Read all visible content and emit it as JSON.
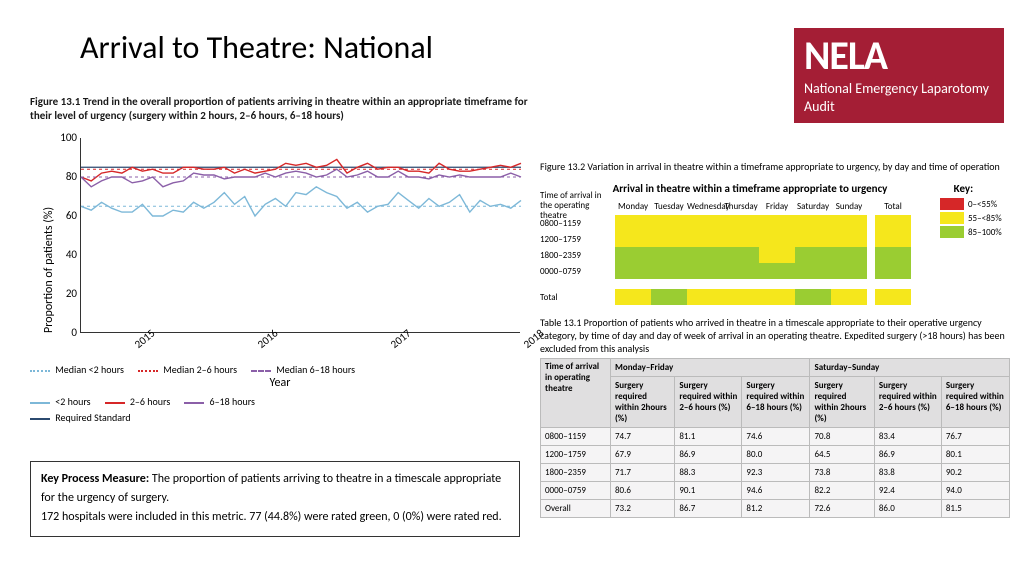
{
  "title": "Arrival to Theatre: National",
  "logo": {
    "abbr": "NELA",
    "full": "National Emergency Laparotomy Audit",
    "bg": "#a41e35",
    "fg": "#ffffff"
  },
  "fig131": {
    "caption": "Figure 13.1  Trend in the overall proportion of patients arriving in theatre within an appropriate timeframe for their level of urgency (surgery within 2 hours, 2–6 hours, 6–18 hours)",
    "type": "line",
    "y_label": "Proportion of patients (%)",
    "x_label": "Year",
    "ylim": [
      0,
      100
    ],
    "ytick_step": 20,
    "x_ticks": [
      "2015",
      "2016",
      "2017",
      "2018"
    ],
    "n_points": 44,
    "x_tick_positions": [
      5,
      17,
      30,
      43
    ],
    "background_color": "#ffffff",
    "required_standard": 85,
    "series": {
      "lt2": {
        "label": "<2 hours",
        "color": "#7db8d8",
        "median_color": "#7db8d8",
        "median": 65,
        "values": [
          65,
          63,
          67,
          64,
          62,
          62,
          66,
          60,
          60,
          63,
          62,
          67,
          64,
          67,
          72,
          66,
          70,
          60,
          66,
          69,
          65,
          72,
          71,
          75,
          72,
          70,
          64,
          67,
          62,
          65,
          66,
          72,
          68,
          64,
          69,
          65,
          67,
          71,
          62,
          68,
          65,
          66,
          64,
          68
        ]
      },
      "h2_6": {
        "label": "2–6 hours",
        "color": "#d62728",
        "median_color": "#d62728",
        "median": 84,
        "values": [
          80,
          78,
          82,
          83,
          82,
          85,
          83,
          84,
          82,
          82,
          85,
          85,
          84,
          84,
          85,
          82,
          84,
          82,
          83,
          84,
          87,
          86,
          87,
          85,
          86,
          89,
          82,
          85,
          87,
          84,
          85,
          85,
          83,
          83,
          82,
          87,
          84,
          83,
          83,
          84,
          85,
          86,
          85,
          87
        ]
      },
      "h6_18": {
        "label": "6–18 hours",
        "color": "#8b5fa8",
        "median_color": "#8b5fa8",
        "median": 80,
        "values": [
          80,
          75,
          78,
          80,
          80,
          77,
          78,
          80,
          75,
          77,
          78,
          82,
          81,
          81,
          79,
          80,
          80,
          80,
          82,
          80,
          82,
          83,
          82,
          80,
          81,
          84,
          80,
          81,
          83,
          80,
          80,
          83,
          80,
          80,
          79,
          81,
          80,
          81,
          80,
          80,
          80,
          80,
          82,
          80
        ]
      }
    },
    "legend": [
      {
        "label": "Median <2 hours",
        "style": "dotted",
        "color": "#7db8d8"
      },
      {
        "label": "Median 2–6 hours",
        "style": "dotted",
        "color": "#d62728"
      },
      {
        "label": "Median 6–18 hours",
        "style": "dashed",
        "color": "#8b5fa8"
      },
      {
        "label": "<2 hours",
        "style": "solid",
        "color": "#7db8d8"
      },
      {
        "label": "2–6 hours",
        "style": "solid",
        "color": "#d62728"
      },
      {
        "label": "6–18 hours",
        "style": "solid",
        "color": "#8b5fa8"
      },
      {
        "label": "Required Standard",
        "style": "solid",
        "color": "#2b4a6f"
      }
    ]
  },
  "kpm": {
    "label": "Key Process Measure:",
    "text1": "The proportion of patients arriving to theatre in a timescale appropriate for the urgency of surgery.",
    "text2": "172 hospitals were included in this metric. 77 (44.8%) were rated green, 0 (0%) were rated red."
  },
  "fig132": {
    "caption": "Figure 13.2  Variation in arrival in theatre within a timeframe appropriate to urgency, by day and time of operation",
    "title": "Arrival in theatre within a timeframe appropriate to urgency",
    "key_label": "Key:",
    "row_header": "Time of arrival in the operating theatre",
    "days": [
      "Monday",
      "Tuesday",
      "Wednesday",
      "Thursday",
      "Friday",
      "Saturday",
      "Sunday"
    ],
    "total_label": "Total",
    "time_slots": [
      "0800–1159",
      "1200–1759",
      "1800–2359",
      "0000–0759"
    ],
    "colors": {
      "red": "#d62728",
      "yellow": "#f5e71c",
      "green": "#9acd32"
    },
    "key": [
      {
        "label": "0–<55%",
        "color": "#d62728"
      },
      {
        "label": "55–<85%",
        "color": "#f5e71c"
      },
      {
        "label": "85–100%",
        "color": "#9acd32"
      }
    ],
    "grid": [
      [
        "yellow",
        "yellow",
        "yellow",
        "yellow",
        "yellow",
        "yellow",
        "yellow"
      ],
      [
        "yellow",
        "yellow",
        "yellow",
        "yellow",
        "yellow",
        "yellow",
        "yellow"
      ],
      [
        "green",
        "green",
        "green",
        "green",
        "yellow",
        "green",
        "green"
      ],
      [
        "green",
        "green",
        "green",
        "green",
        "green",
        "green",
        "green"
      ]
    ],
    "grid_total": [
      "yellow",
      "yellow",
      "green",
      "green"
    ],
    "overall_row": [
      "yellow",
      "green",
      "yellow",
      "yellow",
      "yellow",
      "green",
      "yellow"
    ],
    "overall_total": "yellow"
  },
  "tab131": {
    "caption": "Table 13.1  Proportion of patients who arrived in theatre in a timescale appropriate to their operative urgency category, by time of day and day of week of arrival in an operating theatre. Expedited surgery (>18 hours) has been excluded from this analysis",
    "time_header": "Time of arrival in operating theatre",
    "group_headers": [
      "Monday–Friday",
      "Saturday–Sunday"
    ],
    "sub_headers": [
      "Surgery required within 2hours (%)",
      "Surgery required within 2–6 hours (%)",
      "Surgery required within 6–18 hours (%)",
      "Surgery required within 2hours (%)",
      "Surgery required within 2–6 hours (%)",
      "Surgery required within 6–18 hours (%)"
    ],
    "rows": [
      {
        "slot": "0800–1159",
        "cells": [
          "74.7",
          "81.1",
          "74.6",
          "70.8",
          "83.4",
          "76.7"
        ]
      },
      {
        "slot": "1200–1759",
        "cells": [
          "67.9",
          "86.9",
          "80.0",
          "64.5",
          "86.9",
          "80.1"
        ]
      },
      {
        "slot": "1800–2359",
        "cells": [
          "71.7",
          "88.3",
          "92.3",
          "73.8",
          "83.8",
          "90.2"
        ]
      },
      {
        "slot": "0000–0759",
        "cells": [
          "80.6",
          "90.1",
          "94.6",
          "82.2",
          "92.4",
          "94.0"
        ]
      },
      {
        "slot": "Overall",
        "cells": [
          "73.2",
          "86.7",
          "81.2",
          "72.6",
          "86.0",
          "81.5"
        ]
      }
    ],
    "header_bg": "#e0dfe0",
    "cell_bg": "#f5f4f5",
    "border": "#bbbbbb"
  }
}
